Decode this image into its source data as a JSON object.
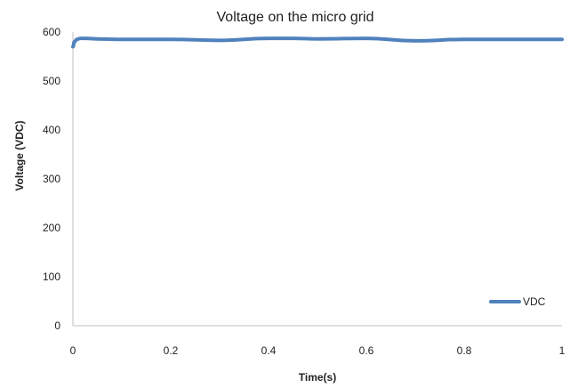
{
  "chart_data": {
    "type": "line",
    "title": "Voltage on the micro grid",
    "xlabel": "Time(s)",
    "ylabel": "Voltage  (VDC)",
    "xlim": [
      0,
      1
    ],
    "ylim": [
      0,
      600
    ],
    "xticks": [
      0,
      0.2,
      0.4,
      0.6,
      0.8,
      1
    ],
    "xtick_labels": [
      "0",
      "0.2",
      "0.4",
      "0.6",
      "0.8",
      "1"
    ],
    "yticks": [
      0,
      100,
      200,
      300,
      400,
      500,
      600
    ],
    "ytick_labels": [
      "0",
      "100",
      "200",
      "300",
      "400",
      "500",
      "600"
    ],
    "grid": false,
    "legend_position": "bottom-right",
    "series": [
      {
        "name": "VDC",
        "color": "#4f81bd",
        "x": [
          0,
          0.003,
          0.008,
          0.015,
          0.025,
          0.05,
          0.1,
          0.2,
          0.3,
          0.4,
          0.45,
          0.5,
          0.6,
          0.7,
          0.8,
          0.9,
          1.0
        ],
        "y": [
          570,
          580,
          585,
          587,
          587,
          586,
          585,
          585,
          583,
          587,
          587,
          586,
          587,
          582,
          585,
          585,
          585
        ]
      }
    ]
  }
}
